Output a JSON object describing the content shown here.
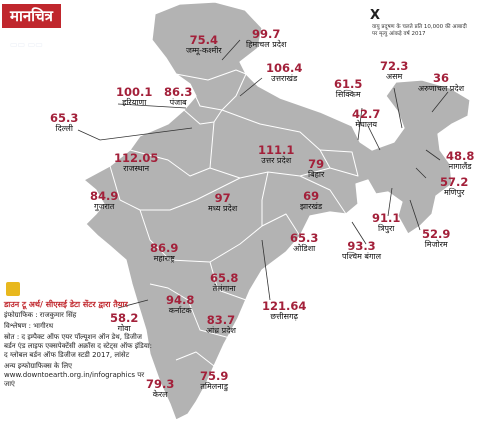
{
  "map_title": "मानचित्र",
  "legend": {
    "marker": "X",
    "text": "वायु प्रदूषण के चलते प्रति 10,000 की आबादी पर मृत्यु आंकड़े वर्ष 2017"
  },
  "regions": [
    {
      "name": "जम्मू-कश्मीर",
      "value": "75.4"
    },
    {
      "name": "हिमाचल प्रदेश",
      "value": "99.7"
    },
    {
      "name": "उत्तराखंड",
      "value": "106.4"
    },
    {
      "name": "पंजाब",
      "value": "86.3"
    },
    {
      "name": "हरियाणा",
      "value": "100.1"
    },
    {
      "name": "दिल्ली",
      "value": "65.3"
    },
    {
      "name": "राजस्थान",
      "value": "112.05"
    },
    {
      "name": "उत्तर प्रदेश",
      "value": "111.1"
    },
    {
      "name": "बिहार",
      "value": "79"
    },
    {
      "name": "सिक्किम",
      "value": "61.5"
    },
    {
      "name": "असम",
      "value": "72.3"
    },
    {
      "name": "अरुणाचल प्रदेश",
      "value": "36"
    },
    {
      "name": "मेघालय",
      "value": "42.7"
    },
    {
      "name": "नागालैंड",
      "value": "48.8"
    },
    {
      "name": "मणिपुर",
      "value": "57.2"
    },
    {
      "name": "मिजोरम",
      "value": "52.9"
    },
    {
      "name": "त्रिपुरा",
      "value": "91.1"
    },
    {
      "name": "पश्चिम बंगाल",
      "value": "93.3"
    },
    {
      "name": "झारखंड",
      "value": "69"
    },
    {
      "name": "गुजरात",
      "value": "84.9"
    },
    {
      "name": "मध्य प्रदेश",
      "value": "97"
    },
    {
      "name": "ओडिशा",
      "value": "65.3"
    },
    {
      "name": "महाराष्ट्र",
      "value": "86.9"
    },
    {
      "name": "तेलंगाना",
      "value": "65.8"
    },
    {
      "name": "छत्तीसगढ़",
      "value": "121.64"
    },
    {
      "name": "गोवा",
      "value": "58.2"
    },
    {
      "name": "कर्नाटक",
      "value": "94.8"
    },
    {
      "name": "आंध्र प्रदेश",
      "value": "83.7"
    },
    {
      "name": "केरल",
      "value": "79.3"
    },
    {
      "name": "तमिलनाडु",
      "value": "75.9"
    }
  ],
  "credits": {
    "source_heading": "डाउन टू अर्थ/ सीएसई डेटा सेंटर द्वारा तैयार",
    "graphics": "इंफोग्राफिक : राजकुमार सिंह",
    "analysis": "विश्लेषण : भागीरथ",
    "source": "स्रोत : द इम्पैक्ट ऑफ एयर पॉल्यूशन ऑन डेथ, डिजीज बर्डन एंड लाइफ एक्सपेक्टेंसी अक्रॉस द स्टेट्स ऑफ इंडिया: द ग्लोबल बर्डन ऑफ डिजीज स्टडी 2017, लांसेट",
    "more": "अन्य इन्फोग्राफिक्स के लिए www.downtoearth.org.in/infographics पर जाएं"
  },
  "colors": {
    "value": "#a3203a",
    "map_fill": "#b3b3b3",
    "title_bg": "#c0272d"
  }
}
